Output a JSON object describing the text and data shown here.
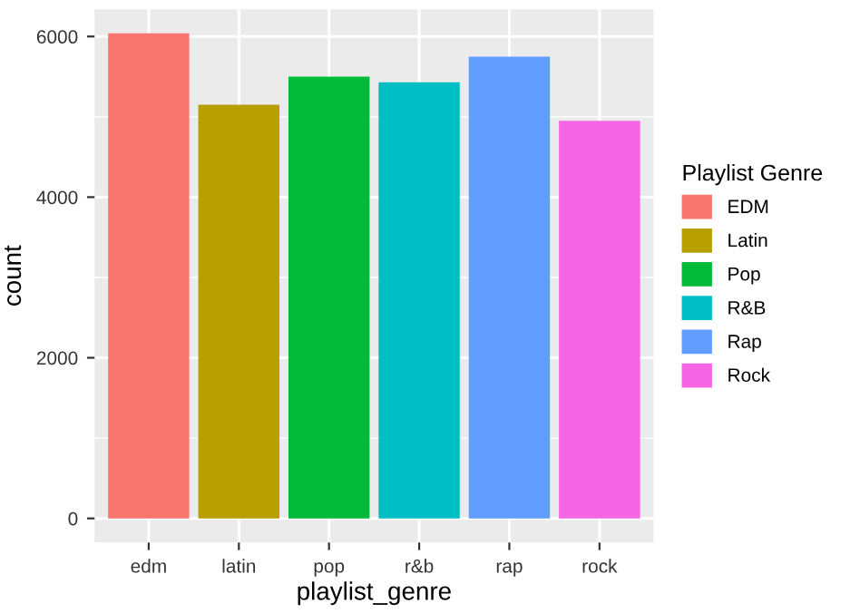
{
  "chart_data": {
    "type": "bar",
    "xlabel": "playlist_genre",
    "ylabel": "count",
    "legend_title": "Playlist Genre",
    "categories": [
      "edm",
      "latin",
      "pop",
      "r&b",
      "rap",
      "rock"
    ],
    "series": [
      {
        "name": "EDM",
        "color": "#f8766d",
        "values": [
          6040,
          null,
          null,
          null,
          null,
          null
        ]
      },
      {
        "name": "Latin",
        "color": "#b79f00",
        "values": [
          null,
          5150,
          null,
          null,
          null,
          null
        ]
      },
      {
        "name": "Pop",
        "color": "#00ba38",
        "values": [
          null,
          null,
          5500,
          null,
          null,
          null
        ]
      },
      {
        "name": "R&B",
        "color": "#00bfc4",
        "values": [
          null,
          null,
          null,
          5430,
          null,
          null
        ]
      },
      {
        "name": "Rap",
        "color": "#619cff",
        "values": [
          null,
          null,
          null,
          null,
          5750,
          null
        ]
      },
      {
        "name": "Rock",
        "color": "#f564e3",
        "values": [
          null,
          null,
          null,
          null,
          null,
          4950
        ]
      }
    ],
    "ylim": [
      -300,
      6340
    ],
    "yticks": [
      0,
      2000,
      4000,
      6000
    ],
    "grid": true,
    "legend": "right"
  }
}
